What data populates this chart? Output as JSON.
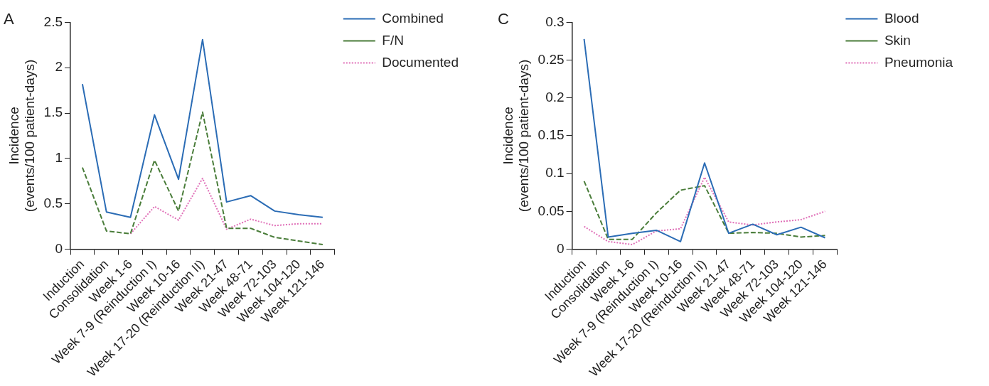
{
  "chart_data": [
    {
      "type": "line",
      "title": "A",
      "ylabel": "Incidence\n(events/100 patient-days)",
      "categories": [
        "Induction",
        "Consolidation",
        "Week 1-6",
        "Week 7-9 (Reinduction I)",
        "Week 10-16",
        "Week 17-20 (Reinduction II)",
        "Week 21-47",
        "Week 48-71",
        "Week 72-103",
        "Week 104-120",
        "Week 121-146"
      ],
      "series": [
        {
          "name": "Combined",
          "color": "#2b6cb5",
          "line_style": "solid",
          "values": [
            1.82,
            0.41,
            0.35,
            1.48,
            0.77,
            2.31,
            0.52,
            0.59,
            0.42,
            0.38,
            0.35
          ]
        },
        {
          "name": "F/N",
          "color": "#4a7d3a",
          "line_style": "dashed",
          "values": [
            0.9,
            0.2,
            0.17,
            0.98,
            0.42,
            1.51,
            0.23,
            0.23,
            0.13,
            0.09,
            0.05
          ]
        },
        {
          "name": "Documented",
          "color": "#e070b8",
          "line_style": "dotted",
          "values": [
            null,
            null,
            0.17,
            0.47,
            0.32,
            0.78,
            0.22,
            0.33,
            0.26,
            0.28,
            0.28
          ]
        }
      ],
      "ylim": [
        0,
        2.5
      ],
      "yticks": [
        0,
        0.5,
        1,
        1.5,
        2,
        2.5
      ],
      "grid": false,
      "legend": "top right",
      "marker": "none"
    },
    {
      "type": "line",
      "title": "C",
      "ylabel": "Incidence\n(events/100 patient-days)",
      "categories": [
        "Induction",
        "Consolidation",
        "Week 1-6",
        "Week 7-9 (Reinduction I)",
        "Week 10-16",
        "Week 17-20 (Reinduction II)",
        "Week 21-47",
        "Week 48-71",
        "Week 72-103",
        "Week 104-120",
        "Week 121-146"
      ],
      "series": [
        {
          "name": "Blood",
          "color": "#2b6cb5",
          "line_style": "solid",
          "values": [
            0.278,
            0.016,
            0.021,
            0.025,
            0.01,
            0.114,
            0.021,
            0.033,
            0.019,
            0.029,
            0.015
          ]
        },
        {
          "name": "Skin",
          "color": "#4a7d3a",
          "line_style": "dashed",
          "values": [
            0.09,
            0.013,
            0.013,
            0.048,
            0.078,
            0.084,
            0.021,
            0.022,
            0.021,
            0.016,
            0.018
          ]
        },
        {
          "name": "Pneumonia",
          "color": "#e070b8",
          "line_style": "dotted",
          "values": [
            0.03,
            0.01,
            0.006,
            0.024,
            0.027,
            0.095,
            0.036,
            0.032,
            0.036,
            0.039,
            0.05
          ]
        }
      ],
      "ylim": [
        0,
        0.3
      ],
      "yticks": [
        0,
        0.05,
        0.1,
        0.15,
        0.2,
        0.25,
        0.3
      ],
      "grid": false,
      "legend": "top right",
      "marker": "none"
    }
  ]
}
